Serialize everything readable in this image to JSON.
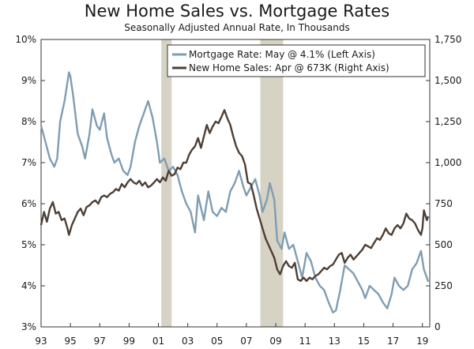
{
  "chart_data": {
    "type": "line",
    "title": "New Home Sales vs. Mortgage Rates",
    "subtitle": "Seasonally Adjusted Annual Rate, In Thousands",
    "x_range": [
      1993,
      2019.5
    ],
    "x_ticks": [
      1993,
      1995,
      1997,
      1999,
      2001,
      2003,
      2005,
      2007,
      2009,
      2011,
      2013,
      2015,
      2017,
      2019
    ],
    "x_tick_labels": [
      "93",
      "95",
      "97",
      "99",
      "01",
      "03",
      "05",
      "07",
      "09",
      "11",
      "13",
      "15",
      "17",
      "19"
    ],
    "y_left": {
      "min": 3,
      "max": 10,
      "ticks": [
        3,
        4,
        5,
        6,
        7,
        8,
        9,
        10
      ],
      "tick_labels": [
        "3%",
        "4%",
        "5%",
        "6%",
        "7%",
        "8%",
        "9%",
        "10%"
      ]
    },
    "y_right": {
      "min": 0,
      "max": 1750,
      "ticks": [
        0,
        250,
        500,
        750,
        1000,
        1250,
        1500,
        1750
      ],
      "tick_labels": [
        "0",
        "250",
        "500",
        "750",
        "1,000",
        "1,250",
        "1,500",
        "1,750"
      ]
    },
    "recessions": [
      [
        2001.2,
        2001.9
      ],
      [
        2007.95,
        2009.5
      ]
    ],
    "legend_position": "top-right",
    "series": [
      {
        "name": "Mortgage Rate: May @ 4.1% (Left Axis)",
        "axis": "left",
        "color": "#7f9db2",
        "points": [
          [
            1993.0,
            7.9
          ],
          [
            1993.3,
            7.5
          ],
          [
            1993.6,
            7.1
          ],
          [
            1993.9,
            6.9
          ],
          [
            1994.1,
            7.1
          ],
          [
            1994.3,
            8.0
          ],
          [
            1994.6,
            8.5
          ],
          [
            1994.9,
            9.2
          ],
          [
            1995.0,
            9.1
          ],
          [
            1995.2,
            8.6
          ],
          [
            1995.5,
            7.7
          ],
          [
            1995.8,
            7.4
          ],
          [
            1996.0,
            7.1
          ],
          [
            1996.3,
            7.7
          ],
          [
            1996.5,
            8.3
          ],
          [
            1996.8,
            7.9
          ],
          [
            1997.0,
            7.8
          ],
          [
            1997.3,
            8.2
          ],
          [
            1997.5,
            7.6
          ],
          [
            1997.8,
            7.2
          ],
          [
            1998.0,
            7.0
          ],
          [
            1998.3,
            7.1
          ],
          [
            1998.6,
            6.8
          ],
          [
            1998.9,
            6.7
          ],
          [
            1999.1,
            6.9
          ],
          [
            1999.4,
            7.5
          ],
          [
            1999.7,
            7.9
          ],
          [
            2000.0,
            8.2
          ],
          [
            2000.3,
            8.5
          ],
          [
            2000.6,
            8.1
          ],
          [
            2000.9,
            7.5
          ],
          [
            2001.1,
            7.0
          ],
          [
            2001.4,
            7.1
          ],
          [
            2001.7,
            6.8
          ],
          [
            2002.0,
            6.9
          ],
          [
            2002.3,
            6.7
          ],
          [
            2002.6,
            6.3
          ],
          [
            2002.9,
            6.0
          ],
          [
            2003.2,
            5.8
          ],
          [
            2003.5,
            5.3
          ],
          [
            2003.7,
            6.2
          ],
          [
            2003.9,
            5.9
          ],
          [
            2004.1,
            5.6
          ],
          [
            2004.4,
            6.3
          ],
          [
            2004.7,
            5.8
          ],
          [
            2005.0,
            5.7
          ],
          [
            2005.3,
            5.9
          ],
          [
            2005.6,
            5.8
          ],
          [
            2005.9,
            6.3
          ],
          [
            2006.2,
            6.5
          ],
          [
            2006.5,
            6.8
          ],
          [
            2006.8,
            6.4
          ],
          [
            2007.0,
            6.2
          ],
          [
            2007.3,
            6.4
          ],
          [
            2007.6,
            6.6
          ],
          [
            2007.9,
            6.2
          ],
          [
            2008.1,
            5.8
          ],
          [
            2008.4,
            6.1
          ],
          [
            2008.6,
            6.5
          ],
          [
            2008.9,
            6.1
          ],
          [
            2009.1,
            5.1
          ],
          [
            2009.4,
            4.9
          ],
          [
            2009.6,
            5.3
          ],
          [
            2009.9,
            4.9
          ],
          [
            2010.2,
            5.0
          ],
          [
            2010.5,
            4.6
          ],
          [
            2010.8,
            4.2
          ],
          [
            2011.1,
            4.8
          ],
          [
            2011.4,
            4.6
          ],
          [
            2011.7,
            4.2
          ],
          [
            2012.0,
            4.0
          ],
          [
            2012.3,
            3.9
          ],
          [
            2012.6,
            3.6
          ],
          [
            2012.9,
            3.35
          ],
          [
            2013.1,
            3.4
          ],
          [
            2013.4,
            3.9
          ],
          [
            2013.7,
            4.5
          ],
          [
            2014.0,
            4.4
          ],
          [
            2014.3,
            4.3
          ],
          [
            2014.6,
            4.1
          ],
          [
            2014.9,
            3.9
          ],
          [
            2015.1,
            3.7
          ],
          [
            2015.4,
            4.0
          ],
          [
            2015.7,
            3.9
          ],
          [
            2016.0,
            3.8
          ],
          [
            2016.3,
            3.6
          ],
          [
            2016.6,
            3.45
          ],
          [
            2016.9,
            3.8
          ],
          [
            2017.1,
            4.2
          ],
          [
            2017.4,
            4.0
          ],
          [
            2017.7,
            3.9
          ],
          [
            2018.0,
            4.0
          ],
          [
            2018.3,
            4.4
          ],
          [
            2018.6,
            4.55
          ],
          [
            2018.9,
            4.85
          ],
          [
            2019.1,
            4.4
          ],
          [
            2019.4,
            4.1
          ]
        ]
      },
      {
        "name": "New Home Sales: Apr @ 673K (Right Axis)",
        "axis": "right",
        "color": "#4e3f35",
        "points": [
          [
            1993.0,
            620
          ],
          [
            1993.2,
            700
          ],
          [
            1993.4,
            640
          ],
          [
            1993.6,
            720
          ],
          [
            1993.8,
            760
          ],
          [
            1994.0,
            690
          ],
          [
            1994.2,
            700
          ],
          [
            1994.4,
            650
          ],
          [
            1994.6,
            660
          ],
          [
            1994.8,
            600
          ],
          [
            1994.9,
            560
          ],
          [
            1995.1,
            620
          ],
          [
            1995.3,
            660
          ],
          [
            1995.5,
            700
          ],
          [
            1995.7,
            720
          ],
          [
            1995.9,
            680
          ],
          [
            1996.1,
            730
          ],
          [
            1996.3,
            740
          ],
          [
            1996.5,
            760
          ],
          [
            1996.7,
            770
          ],
          [
            1996.9,
            750
          ],
          [
            1997.1,
            790
          ],
          [
            1997.3,
            800
          ],
          [
            1997.5,
            790
          ],
          [
            1997.7,
            810
          ],
          [
            1997.9,
            820
          ],
          [
            1998.1,
            840
          ],
          [
            1998.3,
            830
          ],
          [
            1998.5,
            870
          ],
          [
            1998.7,
            850
          ],
          [
            1998.9,
            880
          ],
          [
            1999.1,
            900
          ],
          [
            1999.3,
            880
          ],
          [
            1999.5,
            870
          ],
          [
            1999.7,
            890
          ],
          [
            1999.9,
            860
          ],
          [
            2000.1,
            880
          ],
          [
            2000.3,
            850
          ],
          [
            2000.5,
            860
          ],
          [
            2000.7,
            880
          ],
          [
            2000.9,
            900
          ],
          [
            2001.1,
            880
          ],
          [
            2001.3,
            910
          ],
          [
            2001.5,
            890
          ],
          [
            2001.7,
            950
          ],
          [
            2001.9,
            920
          ],
          [
            2002.1,
            930
          ],
          [
            2002.3,
            970
          ],
          [
            2002.5,
            960
          ],
          [
            2002.7,
            1000
          ],
          [
            2002.9,
            1000
          ],
          [
            2003.1,
            1050
          ],
          [
            2003.3,
            1080
          ],
          [
            2003.5,
            1100
          ],
          [
            2003.7,
            1150
          ],
          [
            2003.9,
            1090
          ],
          [
            2004.1,
            1160
          ],
          [
            2004.3,
            1230
          ],
          [
            2004.5,
            1180
          ],
          [
            2004.7,
            1220
          ],
          [
            2004.9,
            1250
          ],
          [
            2005.1,
            1240
          ],
          [
            2005.3,
            1280
          ],
          [
            2005.5,
            1320
          ],
          [
            2005.7,
            1270
          ],
          [
            2005.9,
            1230
          ],
          [
            2006.1,
            1160
          ],
          [
            2006.3,
            1100
          ],
          [
            2006.5,
            1060
          ],
          [
            2006.7,
            1040
          ],
          [
            2006.9,
            990
          ],
          [
            2007.1,
            880
          ],
          [
            2007.3,
            870
          ],
          [
            2007.5,
            800
          ],
          [
            2007.7,
            720
          ],
          [
            2007.9,
            660
          ],
          [
            2008.1,
            600
          ],
          [
            2008.3,
            540
          ],
          [
            2008.5,
            500
          ],
          [
            2008.7,
            460
          ],
          [
            2008.9,
            420
          ],
          [
            2009.1,
            350
          ],
          [
            2009.3,
            320
          ],
          [
            2009.5,
            370
          ],
          [
            2009.7,
            400
          ],
          [
            2009.9,
            370
          ],
          [
            2010.1,
            360
          ],
          [
            2010.3,
            390
          ],
          [
            2010.5,
            290
          ],
          [
            2010.7,
            280
          ],
          [
            2010.9,
            300
          ],
          [
            2011.1,
            280
          ],
          [
            2011.3,
            300
          ],
          [
            2011.5,
            290
          ],
          [
            2011.7,
            310
          ],
          [
            2011.9,
            320
          ],
          [
            2012.1,
            340
          ],
          [
            2012.3,
            360
          ],
          [
            2012.5,
            350
          ],
          [
            2012.7,
            370
          ],
          [
            2012.9,
            380
          ],
          [
            2013.1,
            410
          ],
          [
            2013.3,
            440
          ],
          [
            2013.5,
            450
          ],
          [
            2013.7,
            390
          ],
          [
            2013.9,
            420
          ],
          [
            2014.1,
            440
          ],
          [
            2014.3,
            410
          ],
          [
            2014.5,
            430
          ],
          [
            2014.7,
            450
          ],
          [
            2014.9,
            470
          ],
          [
            2015.1,
            500
          ],
          [
            2015.3,
            490
          ],
          [
            2015.5,
            480
          ],
          [
            2015.7,
            510
          ],
          [
            2015.9,
            540
          ],
          [
            2016.1,
            530
          ],
          [
            2016.3,
            560
          ],
          [
            2016.5,
            600
          ],
          [
            2016.7,
            570
          ],
          [
            2016.9,
            560
          ],
          [
            2017.1,
            600
          ],
          [
            2017.3,
            620
          ],
          [
            2017.5,
            600
          ],
          [
            2017.7,
            630
          ],
          [
            2017.9,
            690
          ],
          [
            2018.1,
            660
          ],
          [
            2018.3,
            650
          ],
          [
            2018.5,
            630
          ],
          [
            2018.7,
            590
          ],
          [
            2018.9,
            560
          ],
          [
            2019.0,
            600
          ],
          [
            2019.1,
            710
          ],
          [
            2019.3,
            650
          ],
          [
            2019.4,
            673
          ]
        ]
      }
    ]
  }
}
